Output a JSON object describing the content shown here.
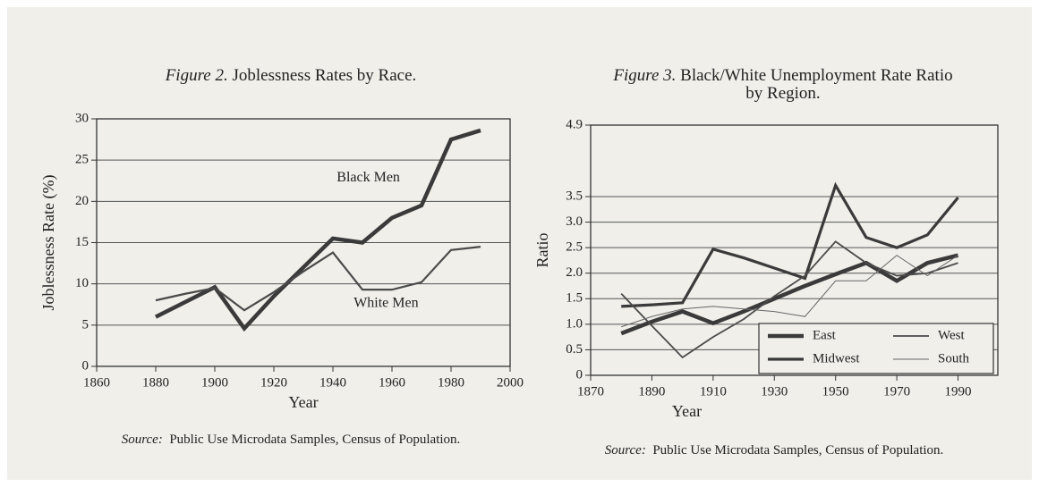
{
  "chart_data": [
    {
      "type": "line",
      "figure_label": "Figure 2.",
      "title": [
        "Joblessness Rates by Race."
      ],
      "x_label": "Year",
      "y_label": "Joblessness Rate (%)",
      "source_label": "Source:",
      "source": "Public Use Microdata Samples, Census of Population.",
      "x": [
        1880,
        1890,
        1900,
        1910,
        1920,
        1930,
        1940,
        1950,
        1960,
        1970,
        1980,
        1990
      ],
      "series": [
        {
          "name": "Black Men",
          "color": "#3a3a3a",
          "line_width": 4.5,
          "values": [
            6,
            7.8,
            9.6,
            4.6,
            8.5,
            12,
            15.5,
            15,
            18,
            19.5,
            27.5,
            28.6
          ]
        },
        {
          "name": "White Men",
          "color": "#4a4a4a",
          "line_width": 2.2,
          "values": [
            8,
            8.8,
            9.5,
            6.8,
            9,
            11.5,
            13.8,
            9.3,
            9.3,
            10.2,
            14.1,
            14.5
          ]
        }
      ],
      "xlim": [
        1860,
        2000
      ],
      "xticks": [
        1860,
        1880,
        1900,
        1920,
        1940,
        1960,
        1980,
        2000
      ],
      "ylim": [
        0,
        30
      ],
      "yticks": [
        0,
        5,
        10,
        15,
        20,
        25,
        30
      ],
      "grid": true,
      "legend": "on-lines"
    },
    {
      "type": "line",
      "figure_label": "Figure 3.",
      "title": [
        "Black/White Unemployment Rate Ratio",
        "by Region."
      ],
      "x_label": "Year",
      "y_label": "Ratio",
      "source_label": "Source:",
      "source": "Public Use Microdata Samples, Census of Population.",
      "x": [
        1880,
        1890,
        1900,
        1910,
        1920,
        1930,
        1940,
        1950,
        1960,
        1970,
        1980,
        1990
      ],
      "series": [
        {
          "name": "East",
          "color": "#3a3a3a",
          "line_width": 4.5,
          "values": [
            0.82,
            1.05,
            1.25,
            1.02,
            1.25,
            1.5,
            1.75,
            1.98,
            2.2,
            1.85,
            2.2,
            2.35
          ]
        },
        {
          "name": "Midwest",
          "color": "#3a3a3a",
          "line_width": 3.2,
          "values": [
            1.35,
            1.38,
            1.42,
            2.47,
            2.3,
            2.1,
            1.9,
            3.72,
            2.7,
            2.5,
            2.75,
            3.48
          ]
        },
        {
          "name": "West",
          "color": "#4a4a4a",
          "line_width": 1.8,
          "values": [
            1.6,
            0.97,
            0.35,
            0.75,
            1.1,
            1.55,
            1.95,
            2.62,
            2.2,
            1.95,
            2.0,
            2.2
          ]
        },
        {
          "name": "South",
          "color": "#666666",
          "line_width": 1,
          "values": [
            0.95,
            1.15,
            1.3,
            1.35,
            1.3,
            1.25,
            1.15,
            1.85,
            1.85,
            2.35,
            1.95,
            2.35
          ]
        }
      ],
      "xlim": [
        1870,
        2003
      ],
      "xticks": [
        1870,
        1890,
        1910,
        1930,
        1950,
        1970,
        1990
      ],
      "ylim": [
        0,
        4.9
      ],
      "yticks": [
        0,
        0.5,
        {
          "value": 1,
          "label": "1.0"
        },
        1.5,
        {
          "value": 2,
          "label": "2.0"
        },
        2.5,
        {
          "value": 3,
          "label": "3.0"
        },
        3.5,
        4.9
      ],
      "grid": true,
      "legend": "lower right"
    }
  ]
}
